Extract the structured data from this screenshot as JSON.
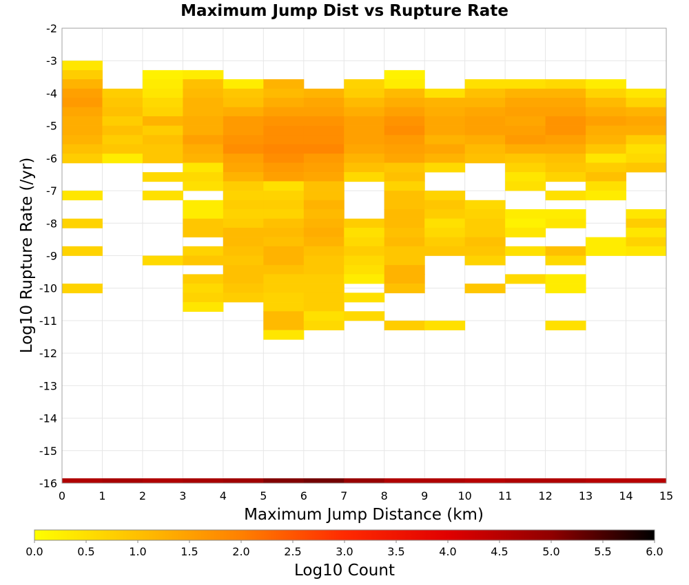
{
  "chart_data": {
    "type": "heatmap",
    "title": "Maximum Jump Dist vs Rupture Rate",
    "xlabel": "Maximum Jump Distance (km)",
    "ylabel": "Log10 Rupture Rate (/yr)",
    "xlim": [
      0,
      15
    ],
    "ylim": [
      -16,
      -2
    ],
    "x_ticks": [
      "0",
      "1",
      "2",
      "3",
      "4",
      "5",
      "6",
      "7",
      "8",
      "9",
      "10",
      "11",
      "12",
      "13",
      "14",
      "15"
    ],
    "y_ticks": [
      "-2",
      "-3",
      "-4",
      "-5",
      "-6",
      "-7",
      "-8",
      "-9",
      "-10",
      "-11",
      "-12",
      "-13",
      "-14",
      "-15",
      "-16"
    ],
    "grid": true,
    "x_bin_width": 1,
    "y_bin_height": 0.286,
    "cells_note": "each row: [x_bin_start, log10_rate_bin_top, log10_count]",
    "cells": [
      [
        0,
        -3.0,
        0.4
      ],
      [
        0,
        -3.29,
        0.8
      ],
      [
        0,
        -3.57,
        1.2
      ],
      [
        0,
        -3.86,
        1.5
      ],
      [
        0,
        -4.14,
        1.6
      ],
      [
        0,
        -4.43,
        1.4
      ],
      [
        0,
        -4.71,
        1.3
      ],
      [
        0,
        -5.0,
        1.3
      ],
      [
        0,
        -5.29,
        1.2
      ],
      [
        0,
        -5.57,
        1.0
      ],
      [
        0,
        -5.86,
        0.8
      ],
      [
        0,
        -7.0,
        0.4
      ],
      [
        0,
        -7.86,
        0.7
      ],
      [
        0,
        -8.71,
        0.7
      ],
      [
        0,
        -9.86,
        0.7
      ],
      [
        1,
        -3.86,
        0.8
      ],
      [
        1,
        -4.14,
        0.9
      ],
      [
        1,
        -4.43,
        1.0
      ],
      [
        1,
        -4.71,
        0.8
      ],
      [
        1,
        -5.0,
        1.0
      ],
      [
        1,
        -5.29,
        0.8
      ],
      [
        1,
        -5.57,
        0.9
      ],
      [
        1,
        -5.86,
        0.3
      ],
      [
        2,
        -3.29,
        0.2
      ],
      [
        2,
        -3.57,
        0.3
      ],
      [
        2,
        -3.86,
        0.4
      ],
      [
        2,
        -4.14,
        0.6
      ],
      [
        2,
        -4.43,
        0.7
      ],
      [
        2,
        -4.71,
        1.2
      ],
      [
        2,
        -5.0,
        0.8
      ],
      [
        2,
        -5.29,
        1.0
      ],
      [
        2,
        -5.57,
        0.9
      ],
      [
        2,
        -5.86,
        0.9
      ],
      [
        2,
        -6.43,
        0.6
      ],
      [
        2,
        -7.0,
        0.5
      ],
      [
        2,
        -9.0,
        0.6
      ],
      [
        3,
        -3.29,
        0.3
      ],
      [
        3,
        -3.57,
        1.0
      ],
      [
        3,
        -3.86,
        1.1
      ],
      [
        3,
        -4.14,
        1.2
      ],
      [
        3,
        -4.43,
        1.2
      ],
      [
        3,
        -4.71,
        1.3
      ],
      [
        3,
        -5.0,
        1.3
      ],
      [
        3,
        -5.29,
        1.5
      ],
      [
        3,
        -5.57,
        1.3
      ],
      [
        3,
        -5.86,
        1.2
      ],
      [
        3,
        -6.14,
        0.4
      ],
      [
        3,
        -6.43,
        0.6
      ],
      [
        3,
        -6.71,
        0.5
      ],
      [
        3,
        -7.29,
        0.3
      ],
      [
        3,
        -7.57,
        0.3
      ],
      [
        3,
        -7.86,
        0.9
      ],
      [
        3,
        -8.14,
        0.9
      ],
      [
        3,
        -8.71,
        0.7
      ],
      [
        3,
        -9.0,
        0.9
      ],
      [
        3,
        -9.57,
        0.8
      ],
      [
        3,
        -9.86,
        0.6
      ],
      [
        3,
        -10.14,
        0.7
      ],
      [
        3,
        -10.43,
        0.4
      ],
      [
        4,
        -3.57,
        0.3
      ],
      [
        4,
        -3.86,
        0.9
      ],
      [
        4,
        -4.14,
        1.0
      ],
      [
        4,
        -4.43,
        1.3
      ],
      [
        4,
        -4.71,
        1.6
      ],
      [
        4,
        -5.0,
        1.6
      ],
      [
        4,
        -5.29,
        1.7
      ],
      [
        4,
        -5.57,
        1.8
      ],
      [
        4,
        -5.86,
        1.5
      ],
      [
        4,
        -6.14,
        1.4
      ],
      [
        4,
        -6.43,
        1.2
      ],
      [
        4,
        -6.71,
        0.8
      ],
      [
        4,
        -7.0,
        0.7
      ],
      [
        4,
        -7.29,
        0.8
      ],
      [
        4,
        -7.57,
        0.7
      ],
      [
        4,
        -7.86,
        0.8
      ],
      [
        4,
        -8.14,
        1.1
      ],
      [
        4,
        -8.43,
        1.1
      ],
      [
        4,
        -8.71,
        1.0
      ],
      [
        4,
        -9.0,
        0.9
      ],
      [
        4,
        -9.29,
        1.0
      ],
      [
        4,
        -9.57,
        1.0
      ],
      [
        4,
        -9.86,
        0.9
      ],
      [
        4,
        -10.14,
        0.8
      ],
      [
        5,
        -3.57,
        1.2
      ],
      [
        5,
        -3.86,
        1.1
      ],
      [
        5,
        -4.14,
        1.3
      ],
      [
        5,
        -4.43,
        1.5
      ],
      [
        5,
        -4.71,
        1.7
      ],
      [
        5,
        -5.0,
        1.8
      ],
      [
        5,
        -5.29,
        1.8
      ],
      [
        5,
        -5.57,
        1.9
      ],
      [
        5,
        -5.86,
        1.8
      ],
      [
        5,
        -6.14,
        1.6
      ],
      [
        5,
        -6.43,
        1.5
      ],
      [
        5,
        -6.71,
        0.5
      ],
      [
        5,
        -7.0,
        0.7
      ],
      [
        5,
        -7.29,
        0.8
      ],
      [
        5,
        -7.57,
        0.7
      ],
      [
        5,
        -7.86,
        1.0
      ],
      [
        5,
        -8.14,
        1.1
      ],
      [
        5,
        -8.43,
        1.0
      ],
      [
        5,
        -8.71,
        1.2
      ],
      [
        5,
        -9.0,
        1.2
      ],
      [
        5,
        -9.29,
        1.0
      ],
      [
        5,
        -9.57,
        0.8
      ],
      [
        5,
        -9.86,
        0.8
      ],
      [
        5,
        -10.14,
        0.7
      ],
      [
        5,
        -10.43,
        0.7
      ],
      [
        5,
        -10.71,
        1.1
      ],
      [
        5,
        -11.0,
        1.1
      ],
      [
        5,
        -11.29,
        0.4
      ],
      [
        6,
        -3.86,
        1.2
      ],
      [
        6,
        -4.14,
        1.4
      ],
      [
        6,
        -4.43,
        1.5
      ],
      [
        6,
        -4.71,
        1.7
      ],
      [
        6,
        -5.0,
        1.8
      ],
      [
        6,
        -5.29,
        1.8
      ],
      [
        6,
        -5.57,
        1.9
      ],
      [
        6,
        -5.86,
        1.6
      ],
      [
        6,
        -6.14,
        1.5
      ],
      [
        6,
        -6.43,
        1.4
      ],
      [
        6,
        -6.71,
        1.0
      ],
      [
        6,
        -7.0,
        1.0
      ],
      [
        6,
        -7.29,
        1.2
      ],
      [
        6,
        -7.57,
        1.1
      ],
      [
        6,
        -7.86,
        1.2
      ],
      [
        6,
        -8.14,
        1.3
      ],
      [
        6,
        -8.43,
        1.2
      ],
      [
        6,
        -8.71,
        1.0
      ],
      [
        6,
        -9.0,
        0.9
      ],
      [
        6,
        -9.29,
        0.9
      ],
      [
        6,
        -9.57,
        0.8
      ],
      [
        6,
        -9.86,
        0.8
      ],
      [
        6,
        -10.14,
        0.8
      ],
      [
        6,
        -10.43,
        0.8
      ],
      [
        6,
        -10.71,
        0.5
      ],
      [
        6,
        -11.0,
        0.6
      ],
      [
        7,
        -3.57,
        0.7
      ],
      [
        7,
        -3.86,
        0.8
      ],
      [
        7,
        -4.14,
        1.1
      ],
      [
        7,
        -4.43,
        1.3
      ],
      [
        7,
        -4.71,
        1.5
      ],
      [
        7,
        -5.0,
        1.5
      ],
      [
        7,
        -5.29,
        1.5
      ],
      [
        7,
        -5.57,
        1.4
      ],
      [
        7,
        -5.86,
        1.2
      ],
      [
        7,
        -6.14,
        1.0
      ],
      [
        7,
        -6.43,
        0.6
      ],
      [
        7,
        -7.86,
        0.8
      ],
      [
        7,
        -8.14,
        0.5
      ],
      [
        7,
        -8.43,
        0.6
      ],
      [
        7,
        -8.71,
        0.8
      ],
      [
        7,
        -9.0,
        0.6
      ],
      [
        7,
        -9.29,
        0.5
      ],
      [
        7,
        -9.57,
        0.3
      ],
      [
        7,
        -10.14,
        0.5
      ],
      [
        7,
        -10.71,
        0.6
      ],
      [
        8,
        -3.29,
        0.2
      ],
      [
        8,
        -3.57,
        0.3
      ],
      [
        8,
        -3.86,
        1.1
      ],
      [
        8,
        -4.14,
        1.3
      ],
      [
        8,
        -4.43,
        1.5
      ],
      [
        8,
        -4.71,
        1.7
      ],
      [
        8,
        -5.0,
        1.8
      ],
      [
        8,
        -5.29,
        1.6
      ],
      [
        8,
        -5.57,
        1.5
      ],
      [
        8,
        -5.86,
        1.4
      ],
      [
        8,
        -6.14,
        0.9
      ],
      [
        8,
        -6.43,
        1.0
      ],
      [
        8,
        -6.71,
        0.7
      ],
      [
        8,
        -7.0,
        1.0
      ],
      [
        8,
        -7.29,
        1.0
      ],
      [
        8,
        -7.57,
        1.1
      ],
      [
        8,
        -7.86,
        1.1
      ],
      [
        8,
        -8.14,
        1.0
      ],
      [
        8,
        -8.43,
        1.1
      ],
      [
        8,
        -8.71,
        0.9
      ],
      [
        8,
        -9.0,
        0.9
      ],
      [
        8,
        -9.29,
        1.2
      ],
      [
        8,
        -9.57,
        1.2
      ],
      [
        8,
        -9.86,
        1.0
      ],
      [
        8,
        -11.0,
        0.8
      ],
      [
        9,
        -3.86,
        0.5
      ],
      [
        9,
        -4.14,
        1.2
      ],
      [
        9,
        -4.43,
        1.3
      ],
      [
        9,
        -4.71,
        1.4
      ],
      [
        9,
        -5.0,
        1.4
      ],
      [
        9,
        -5.29,
        1.2
      ],
      [
        9,
        -5.57,
        1.4
      ],
      [
        9,
        -5.86,
        1.2
      ],
      [
        9,
        -6.14,
        0.6
      ],
      [
        9,
        -7.0,
        0.7
      ],
      [
        9,
        -7.29,
        0.9
      ],
      [
        9,
        -7.57,
        0.8
      ],
      [
        9,
        -7.86,
        0.5
      ],
      [
        9,
        -8.14,
        0.6
      ],
      [
        9,
        -8.43,
        0.8
      ],
      [
        9,
        -8.71,
        0.9
      ],
      [
        9,
        -11.0,
        0.5
      ],
      [
        10,
        -3.57,
        0.5
      ],
      [
        10,
        -3.86,
        1.0
      ],
      [
        10,
        -4.14,
        1.2
      ],
      [
        10,
        -4.43,
        1.4
      ],
      [
        10,
        -4.71,
        1.5
      ],
      [
        10,
        -5.0,
        1.5
      ],
      [
        10,
        -5.29,
        1.3
      ],
      [
        10,
        -5.57,
        1.1
      ],
      [
        10,
        -5.86,
        1.0
      ],
      [
        10,
        -7.29,
        0.6
      ],
      [
        10,
        -7.57,
        0.7
      ],
      [
        10,
        -7.86,
        0.8
      ],
      [
        10,
        -8.14,
        0.8
      ],
      [
        10,
        -8.43,
        1.0
      ],
      [
        10,
        -8.71,
        0.9
      ],
      [
        10,
        -9.0,
        0.7
      ],
      [
        10,
        -9.86,
        0.9
      ],
      [
        11,
        -3.57,
        0.5
      ],
      [
        11,
        -3.86,
        1.2
      ],
      [
        11,
        -4.14,
        1.4
      ],
      [
        11,
        -4.43,
        1.5
      ],
      [
        11,
        -4.71,
        1.4
      ],
      [
        11,
        -5.0,
        1.5
      ],
      [
        11,
        -5.29,
        1.6
      ],
      [
        11,
        -5.57,
        1.3
      ],
      [
        11,
        -5.86,
        0.9
      ],
      [
        11,
        -6.14,
        0.7
      ],
      [
        11,
        -6.43,
        0.4
      ],
      [
        11,
        -6.71,
        0.5
      ],
      [
        11,
        -7.57,
        0.3
      ],
      [
        11,
        -7.86,
        0.2
      ],
      [
        11,
        -8.14,
        0.4
      ],
      [
        11,
        -8.71,
        0.5
      ],
      [
        11,
        -9.57,
        0.6
      ],
      [
        12,
        -3.57,
        0.6
      ],
      [
        12,
        -3.86,
        1.2
      ],
      [
        12,
        -4.14,
        1.4
      ],
      [
        12,
        -4.43,
        1.5
      ],
      [
        12,
        -4.71,
        1.7
      ],
      [
        12,
        -5.0,
        1.7
      ],
      [
        12,
        -5.29,
        1.5
      ],
      [
        12,
        -5.57,
        1.3
      ],
      [
        12,
        -5.86,
        1.0
      ],
      [
        12,
        -6.14,
        0.9
      ],
      [
        12,
        -6.43,
        0.7
      ],
      [
        12,
        -7.0,
        0.5
      ],
      [
        12,
        -7.57,
        0.3
      ],
      [
        12,
        -7.86,
        0.4
      ],
      [
        12,
        -8.71,
        1.0
      ],
      [
        12,
        -9.0,
        0.6
      ],
      [
        12,
        -9.57,
        0.3
      ],
      [
        12,
        -9.86,
        0.3
      ],
      [
        12,
        -11.0,
        0.5
      ],
      [
        13,
        -3.57,
        0.3
      ],
      [
        13,
        -3.86,
        0.7
      ],
      [
        13,
        -4.14,
        1.1
      ],
      [
        13,
        -4.43,
        1.3
      ],
      [
        13,
        -4.71,
        1.5
      ],
      [
        13,
        -5.0,
        1.3
      ],
      [
        13,
        -5.29,
        1.2
      ],
      [
        13,
        -5.57,
        0.9
      ],
      [
        13,
        -5.86,
        0.4
      ],
      [
        13,
        -6.14,
        0.8
      ],
      [
        13,
        -6.43,
        1.0
      ],
      [
        13,
        -6.71,
        0.5
      ],
      [
        13,
        -7.0,
        0.3
      ],
      [
        13,
        -8.43,
        0.3
      ],
      [
        13,
        -8.71,
        0.3
      ],
      [
        14,
        -3.86,
        0.4
      ],
      [
        14,
        -4.14,
        0.7
      ],
      [
        14,
        -4.43,
        1.2
      ],
      [
        14,
        -4.71,
        1.4
      ],
      [
        14,
        -5.0,
        1.3
      ],
      [
        14,
        -5.29,
        0.8
      ],
      [
        14,
        -5.57,
        0.5
      ],
      [
        14,
        -5.86,
        0.6
      ],
      [
        14,
        -6.14,
        0.9
      ],
      [
        14,
        -7.57,
        0.4
      ],
      [
        14,
        -7.86,
        0.8
      ],
      [
        14,
        -8.14,
        0.4
      ],
      [
        14,
        -8.43,
        0.7
      ],
      [
        14,
        -8.71,
        0.4
      ]
    ],
    "bottom_row": {
      "y": -16,
      "values": [
        4.6,
        4.7,
        4.6,
        4.7,
        4.8,
        5.1,
        5.2,
        4.9,
        4.6,
        4.6,
        4.5,
        4.6,
        4.6,
        4.5,
        4.5
      ]
    },
    "colorbar": {
      "label": "Log10 Count",
      "range": [
        0,
        6
      ],
      "ticks": [
        "0.0",
        "0.5",
        "1.0",
        "1.5",
        "2.0",
        "2.5",
        "3.0",
        "3.5",
        "4.0",
        "4.5",
        "5.0",
        "5.5",
        "6.0"
      ],
      "stops": [
        "#ffff00",
        "#ffc000",
        "#ff8000",
        "#ff2a00",
        "#e00000",
        "#900000",
        "#000000"
      ],
      "placement": "bottom"
    }
  }
}
